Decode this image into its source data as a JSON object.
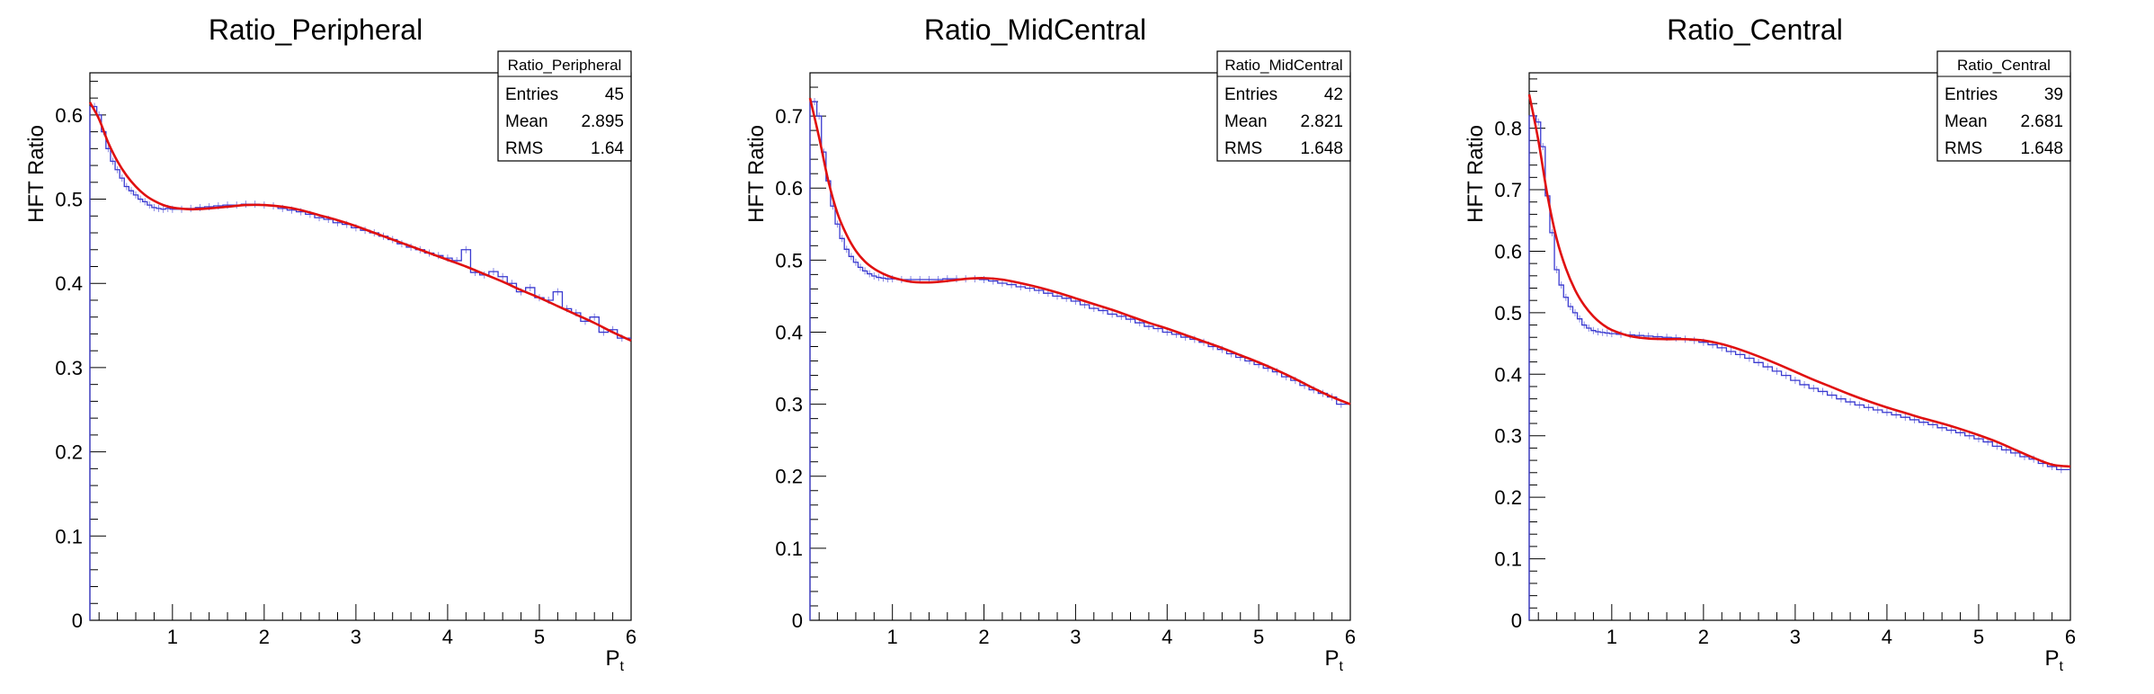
{
  "chart_data": [
    {
      "type": "line",
      "title": "Ratio_Peripheral",
      "xlabel": "P",
      "xlabel_sub": "t",
      "ylabel": "HFT Ratio",
      "xlim": [
        0.1,
        6.0
      ],
      "ylim": [
        0,
        0.65
      ],
      "xticks": [
        1,
        2,
        3,
        4,
        5,
        6
      ],
      "yticks": [
        0,
        0.1,
        0.2,
        0.3,
        0.4,
        0.5,
        0.6
      ],
      "grid": false,
      "stats": {
        "name": "Ratio_Peripheral",
        "rows": [
          {
            "label": "Entries",
            "value": "45"
          },
          {
            "label": "Mean",
            "value": "2.895"
          },
          {
            "label": "RMS",
            "value": "1.64"
          }
        ]
      },
      "series": [
        {
          "kind": "histogram",
          "color": "#3a3ad0",
          "x": [
            0.15,
            0.2,
            0.25,
            0.3,
            0.35,
            0.4,
            0.45,
            0.5,
            0.55,
            0.6,
            0.65,
            0.7,
            0.75,
            0.8,
            0.85,
            0.9,
            0.95,
            1.0,
            1.1,
            1.2,
            1.3,
            1.4,
            1.5,
            1.6,
            1.7,
            1.8,
            1.9,
            2.0,
            2.1,
            2.2,
            2.3,
            2.4,
            2.5,
            2.6,
            2.7,
            2.8,
            2.9,
            3.0,
            3.1,
            3.2,
            3.3,
            3.4,
            3.5,
            3.6,
            3.7,
            3.8,
            3.9,
            4.0,
            4.1,
            4.2,
            4.3,
            4.4,
            4.5,
            4.6,
            4.7,
            4.8,
            4.9,
            5.0,
            5.1,
            5.2,
            5.3,
            5.4,
            5.5,
            5.6,
            5.7,
            5.8,
            5.9
          ],
          "y": [
            0.61,
            0.6,
            0.58,
            0.56,
            0.545,
            0.535,
            0.525,
            0.515,
            0.51,
            0.505,
            0.5,
            0.497,
            0.493,
            0.49,
            0.489,
            0.488,
            0.489,
            0.488,
            0.488,
            0.489,
            0.49,
            0.491,
            0.492,
            0.493,
            0.493,
            0.494,
            0.494,
            0.493,
            0.492,
            0.489,
            0.487,
            0.485,
            0.482,
            0.478,
            0.476,
            0.472,
            0.47,
            0.466,
            0.463,
            0.46,
            0.456,
            0.452,
            0.447,
            0.443,
            0.44,
            0.436,
            0.433,
            0.43,
            0.427,
            0.44,
            0.413,
            0.41,
            0.414,
            0.408,
            0.4,
            0.39,
            0.395,
            0.383,
            0.38,
            0.39,
            0.37,
            0.365,
            0.355,
            0.36,
            0.342,
            0.345,
            0.335
          ]
        },
        {
          "kind": "fit",
          "color": "#e01010",
          "x": [
            0.1,
            0.2,
            0.3,
            0.4,
            0.5,
            0.6,
            0.7,
            0.8,
            0.9,
            1.0,
            1.2,
            1.4,
            1.6,
            1.8,
            2.0,
            2.2,
            2.4,
            2.6,
            2.8,
            3.0,
            3.2,
            3.4,
            3.6,
            3.8,
            4.0,
            4.2,
            4.4,
            4.6,
            4.8,
            5.0,
            5.2,
            5.4,
            5.6,
            5.8,
            6.0
          ],
          "y": [
            0.615,
            0.595,
            0.567,
            0.545,
            0.528,
            0.515,
            0.505,
            0.498,
            0.493,
            0.49,
            0.488,
            0.489,
            0.491,
            0.493,
            0.493,
            0.491,
            0.487,
            0.481,
            0.475,
            0.468,
            0.46,
            0.452,
            0.444,
            0.436,
            0.428,
            0.42,
            0.411,
            0.402,
            0.392,
            0.383,
            0.373,
            0.363,
            0.353,
            0.342,
            0.332
          ]
        }
      ]
    },
    {
      "type": "line",
      "title": "Ratio_MidCentral",
      "xlabel": "P",
      "xlabel_sub": "t",
      "ylabel": "HFT Ratio",
      "xlim": [
        0.1,
        6.0
      ],
      "ylim": [
        0,
        0.76
      ],
      "xticks": [
        1,
        2,
        3,
        4,
        5,
        6
      ],
      "yticks": [
        0,
        0.1,
        0.2,
        0.3,
        0.4,
        0.5,
        0.6,
        0.7
      ],
      "grid": false,
      "stats": {
        "name": "Ratio_MidCentral",
        "rows": [
          {
            "label": "Entries",
            "value": "42"
          },
          {
            "label": "Mean",
            "value": "2.821"
          },
          {
            "label": "RMS",
            "value": "1.648"
          }
        ]
      },
      "series": [
        {
          "kind": "histogram",
          "color": "#3a3ad0",
          "x": [
            0.15,
            0.2,
            0.25,
            0.3,
            0.35,
            0.4,
            0.45,
            0.5,
            0.55,
            0.6,
            0.65,
            0.7,
            0.75,
            0.8,
            0.85,
            0.9,
            0.95,
            1.0,
            1.1,
            1.2,
            1.3,
            1.4,
            1.5,
            1.6,
            1.7,
            1.8,
            1.9,
            2.0,
            2.1,
            2.2,
            2.3,
            2.4,
            2.5,
            2.6,
            2.7,
            2.8,
            2.9,
            3.0,
            3.1,
            3.2,
            3.3,
            3.4,
            3.5,
            3.6,
            3.7,
            3.8,
            3.9,
            4.0,
            4.1,
            4.2,
            4.3,
            4.4,
            4.5,
            4.6,
            4.7,
            4.8,
            4.9,
            5.0,
            5.1,
            5.2,
            5.3,
            5.4,
            5.5,
            5.6,
            5.7,
            5.8,
            5.9
          ],
          "y": [
            0.72,
            0.7,
            0.65,
            0.61,
            0.575,
            0.55,
            0.53,
            0.515,
            0.505,
            0.497,
            0.49,
            0.485,
            0.481,
            0.478,
            0.476,
            0.475,
            0.474,
            0.474,
            0.473,
            0.473,
            0.473,
            0.473,
            0.473,
            0.474,
            0.474,
            0.474,
            0.474,
            0.473,
            0.471,
            0.468,
            0.466,
            0.463,
            0.461,
            0.458,
            0.454,
            0.45,
            0.447,
            0.443,
            0.438,
            0.433,
            0.43,
            0.425,
            0.422,
            0.418,
            0.413,
            0.408,
            0.405,
            0.4,
            0.397,
            0.393,
            0.39,
            0.386,
            0.38,
            0.376,
            0.37,
            0.365,
            0.36,
            0.355,
            0.35,
            0.345,
            0.338,
            0.333,
            0.326,
            0.32,
            0.315,
            0.31,
            0.3
          ]
        },
        {
          "kind": "fit",
          "color": "#e01010",
          "x": [
            0.1,
            0.2,
            0.3,
            0.4,
            0.5,
            0.6,
            0.7,
            0.8,
            0.9,
            1.0,
            1.2,
            1.4,
            1.6,
            1.8,
            2.0,
            2.2,
            2.4,
            2.6,
            2.8,
            3.0,
            3.2,
            3.4,
            3.6,
            3.8,
            4.0,
            4.2,
            4.4,
            4.6,
            4.8,
            5.0,
            5.2,
            5.4,
            5.6,
            5.8,
            6.0
          ],
          "y": [
            0.725,
            0.67,
            0.61,
            0.565,
            0.535,
            0.513,
            0.498,
            0.488,
            0.481,
            0.476,
            0.47,
            0.469,
            0.471,
            0.474,
            0.475,
            0.473,
            0.468,
            0.462,
            0.455,
            0.447,
            0.439,
            0.431,
            0.422,
            0.413,
            0.405,
            0.396,
            0.387,
            0.378,
            0.368,
            0.358,
            0.347,
            0.335,
            0.322,
            0.31,
            0.3
          ]
        }
      ]
    },
    {
      "type": "line",
      "title": "Ratio_Central",
      "xlabel": "P",
      "xlabel_sub": "t",
      "ylabel": "HFT Ratio",
      "xlim": [
        0.1,
        6.0
      ],
      "ylim": [
        0,
        0.89
      ],
      "xticks": [
        1,
        2,
        3,
        4,
        5,
        6
      ],
      "yticks": [
        0,
        0.1,
        0.2,
        0.3,
        0.4,
        0.5,
        0.6,
        0.7,
        0.8
      ],
      "grid": false,
      "stats": {
        "name": "Ratio_Central",
        "rows": [
          {
            "label": "Entries",
            "value": "39"
          },
          {
            "label": "Mean",
            "value": "2.681"
          },
          {
            "label": "RMS",
            "value": "1.648"
          }
        ]
      },
      "series": [
        {
          "kind": "histogram",
          "color": "#3a3ad0",
          "x": [
            0.15,
            0.2,
            0.25,
            0.3,
            0.35,
            0.4,
            0.45,
            0.5,
            0.55,
            0.6,
            0.65,
            0.7,
            0.75,
            0.8,
            0.85,
            0.9,
            0.95,
            1.0,
            1.1,
            1.2,
            1.3,
            1.4,
            1.5,
            1.6,
            1.7,
            1.8,
            1.9,
            2.0,
            2.1,
            2.2,
            2.3,
            2.4,
            2.5,
            2.6,
            2.7,
            2.8,
            2.9,
            3.0,
            3.1,
            3.2,
            3.3,
            3.4,
            3.5,
            3.6,
            3.7,
            3.8,
            3.9,
            4.0,
            4.1,
            4.2,
            4.3,
            4.4,
            4.5,
            4.6,
            4.7,
            4.8,
            4.9,
            5.0,
            5.1,
            5.2,
            5.3,
            5.4,
            5.5,
            5.6,
            5.7,
            5.8,
            5.9
          ],
          "y": [
            0.82,
            0.81,
            0.77,
            0.69,
            0.63,
            0.57,
            0.545,
            0.525,
            0.51,
            0.5,
            0.49,
            0.48,
            0.475,
            0.471,
            0.469,
            0.468,
            0.467,
            0.466,
            0.465,
            0.464,
            0.463,
            0.462,
            0.461,
            0.46,
            0.459,
            0.457,
            0.455,
            0.452,
            0.448,
            0.443,
            0.437,
            0.432,
            0.426,
            0.419,
            0.412,
            0.405,
            0.398,
            0.39,
            0.383,
            0.377,
            0.372,
            0.366,
            0.36,
            0.355,
            0.35,
            0.346,
            0.342,
            0.338,
            0.334,
            0.33,
            0.326,
            0.322,
            0.318,
            0.313,
            0.309,
            0.305,
            0.3,
            0.295,
            0.29,
            0.283,
            0.277,
            0.272,
            0.266,
            0.262,
            0.255,
            0.25,
            0.245
          ]
        },
        {
          "kind": "fit",
          "color": "#e01010",
          "x": [
            0.1,
            0.2,
            0.3,
            0.4,
            0.5,
            0.6,
            0.7,
            0.8,
            0.9,
            1.0,
            1.2,
            1.4,
            1.6,
            1.8,
            2.0,
            2.2,
            2.4,
            2.6,
            2.8,
            3.0,
            3.2,
            3.4,
            3.6,
            3.8,
            4.0,
            4.2,
            4.4,
            4.6,
            4.8,
            5.0,
            5.2,
            5.4,
            5.6,
            5.8,
            6.0
          ],
          "y": [
            0.855,
            0.78,
            0.69,
            0.62,
            0.572,
            0.537,
            0.512,
            0.494,
            0.481,
            0.472,
            0.462,
            0.458,
            0.457,
            0.457,
            0.455,
            0.449,
            0.44,
            0.429,
            0.417,
            0.404,
            0.391,
            0.379,
            0.367,
            0.356,
            0.346,
            0.337,
            0.328,
            0.32,
            0.311,
            0.301,
            0.29,
            0.277,
            0.264,
            0.253,
            0.25
          ]
        }
      ]
    }
  ]
}
